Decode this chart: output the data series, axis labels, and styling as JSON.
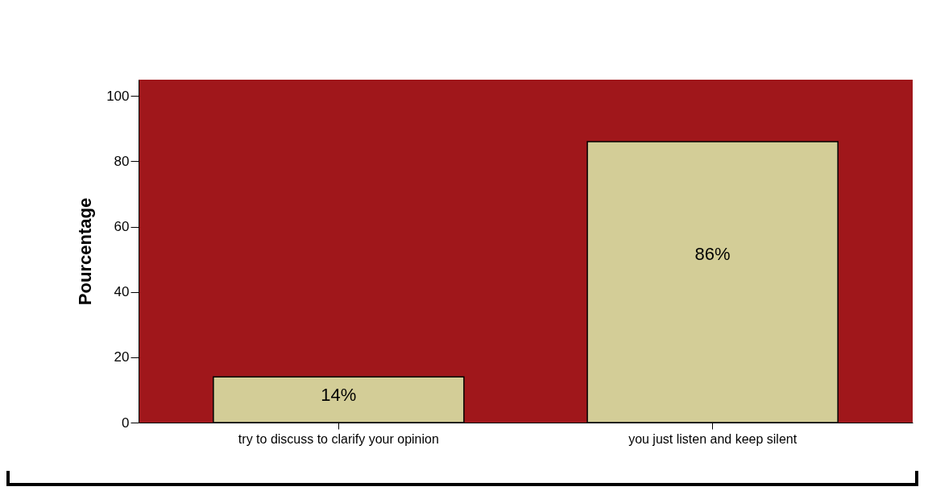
{
  "chart_data": {
    "type": "bar",
    "ylabel": "Pourcentage",
    "categories": [
      "try to discuss to clarify your opinion",
      "you just listen and keep silent"
    ],
    "values": [
      14,
      86
    ],
    "color": "#d3cd97",
    "value_labels": [
      "14%",
      "86%"
    ],
    "ylim": [
      0,
      105
    ],
    "yticks": [
      0,
      20,
      40,
      60,
      80,
      100
    ],
    "grid": false
  }
}
